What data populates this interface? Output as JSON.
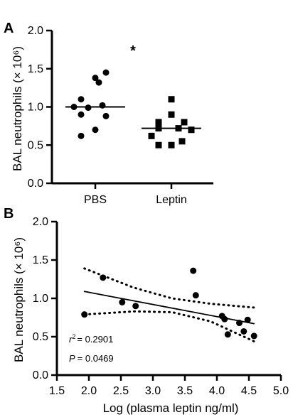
{
  "chart_data": [
    {
      "panel": "A",
      "type": "scatter",
      "ylabel": "BAL neutrophils (× 10⁶)",
      "categories": [
        "PBS",
        "Leptin"
      ],
      "ylim": [
        0,
        2.0
      ],
      "yticks": [
        "0.0",
        "0.5",
        "1.0",
        "1.5",
        "2.0"
      ],
      "significance": "*",
      "series": [
        {
          "marker": "circle",
          "median": 1.0,
          "values": [
            1.45,
            1.38,
            1.32,
            1.1,
            1.02,
            1.0,
            0.99,
            0.9,
            0.88,
            0.7,
            0.62
          ]
        },
        {
          "marker": "square",
          "median": 0.72,
          "values": [
            1.1,
            0.9,
            0.8,
            0.8,
            0.72,
            0.72,
            0.7,
            0.62,
            0.55,
            0.5,
            0.5
          ]
        }
      ]
    },
    {
      "panel": "B",
      "type": "scatter",
      "xlabel": "Log (plasma leptin ng/ml)",
      "ylabel": "BAL neutrophils (× 10⁶)",
      "xlim": [
        1.5,
        5.0
      ],
      "ylim": [
        0,
        2.0
      ],
      "xticks": [
        "1.5",
        "2.0",
        "2.5",
        "3.0",
        "3.5",
        "4.0",
        "4.5",
        "5.0"
      ],
      "yticks": [
        "0.0",
        "0.5",
        "1.0",
        "1.5",
        "2.0"
      ],
      "points": [
        [
          1.93,
          0.79
        ],
        [
          2.22,
          1.27
        ],
        [
          2.52,
          0.95
        ],
        [
          2.73,
          0.9
        ],
        [
          3.63,
          1.36
        ],
        [
          3.67,
          1.04
        ],
        [
          4.08,
          0.77
        ],
        [
          4.12,
          0.73
        ],
        [
          4.17,
          0.53
        ],
        [
          4.35,
          0.68
        ],
        [
          4.42,
          0.57
        ],
        [
          4.48,
          0.72
        ],
        [
          4.58,
          0.51
        ]
      ],
      "regression": {
        "x": [
          1.93,
          4.58
        ],
        "y": [
          1.09,
          0.67
        ]
      },
      "ci_upper": {
        "x": [
          1.93,
          2.7,
          3.3,
          3.9,
          4.58
        ],
        "y": [
          1.39,
          1.14,
          1.0,
          0.93,
          0.88
        ]
      },
      "ci_lower": {
        "x": [
          1.93,
          2.7,
          3.3,
          3.9,
          4.58
        ],
        "y": [
          0.79,
          0.83,
          0.82,
          0.7,
          0.44
        ]
      },
      "annotations": {
        "r2": "= 0.2901",
        "p": "= 0.0469"
      }
    }
  ]
}
